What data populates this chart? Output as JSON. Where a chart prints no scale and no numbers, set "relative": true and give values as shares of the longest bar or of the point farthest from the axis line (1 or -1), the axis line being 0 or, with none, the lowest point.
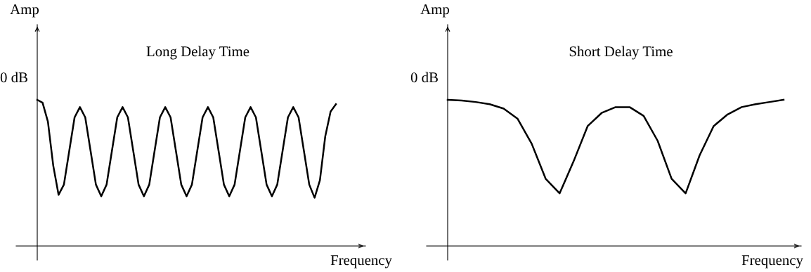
{
  "chart_data": [
    {
      "type": "line",
      "title": "Long Delay Time",
      "xlabel": "Frequency",
      "ylabel": "Amp",
      "annotations": [
        "0 dB"
      ],
      "relative": true,
      "categories": [
        null,
        null,
        null,
        null,
        null,
        null,
        null,
        null,
        null,
        null,
        null,
        null,
        null,
        null,
        null,
        null,
        null,
        null,
        null,
        null,
        null,
        null,
        null,
        null,
        null,
        null,
        null,
        null,
        null,
        null,
        null,
        null,
        null,
        null,
        null,
        null,
        null,
        null,
        null,
        null,
        null,
        null,
        null,
        null,
        null,
        null,
        null,
        null,
        null,
        null,
        null,
        null,
        null,
        null,
        null,
        null,
        null
      ],
      "series": [
        {
          "color": "#000000",
          "values": [
            1.0,
            0.98,
            0.85,
            0.55,
            0.35,
            0.42,
            0.65,
            0.88,
            0.95,
            0.88,
            0.65,
            0.42,
            0.34,
            0.42,
            0.65,
            0.88,
            0.95,
            0.88,
            0.65,
            0.42,
            0.34,
            0.42,
            0.65,
            0.88,
            0.95,
            0.88,
            0.65,
            0.42,
            0.34,
            0.42,
            0.65,
            0.88,
            0.95,
            0.88,
            0.65,
            0.42,
            0.34,
            0.42,
            0.65,
            0.88,
            0.95,
            0.88,
            0.65,
            0.42,
            0.34,
            0.42,
            0.65,
            0.88,
            0.95,
            0.88,
            0.65,
            0.42,
            0.33,
            0.45,
            0.75,
            0.92,
            0.97
          ]
        }
      ]
    },
    {
      "type": "line",
      "title": "Short Delay Time",
      "xlabel": "Frequency",
      "ylabel": "Amp",
      "annotations": [
        "0 dB"
      ],
      "relative": true,
      "categories": [
        null,
        null,
        null,
        null,
        null,
        null,
        null,
        null,
        null,
        null,
        null,
        null,
        null,
        null,
        null,
        null,
        null,
        null,
        null,
        null,
        null,
        null,
        null,
        null,
        null
      ],
      "series": [
        {
          "color": "#000000",
          "values": [
            1.0,
            0.995,
            0.985,
            0.97,
            0.94,
            0.87,
            0.7,
            0.46,
            0.36,
            0.58,
            0.82,
            0.91,
            0.95,
            0.95,
            0.89,
            0.72,
            0.46,
            0.36,
            0.62,
            0.82,
            0.9,
            0.95,
            0.97,
            0.985,
            1.0
          ]
        }
      ]
    }
  ]
}
